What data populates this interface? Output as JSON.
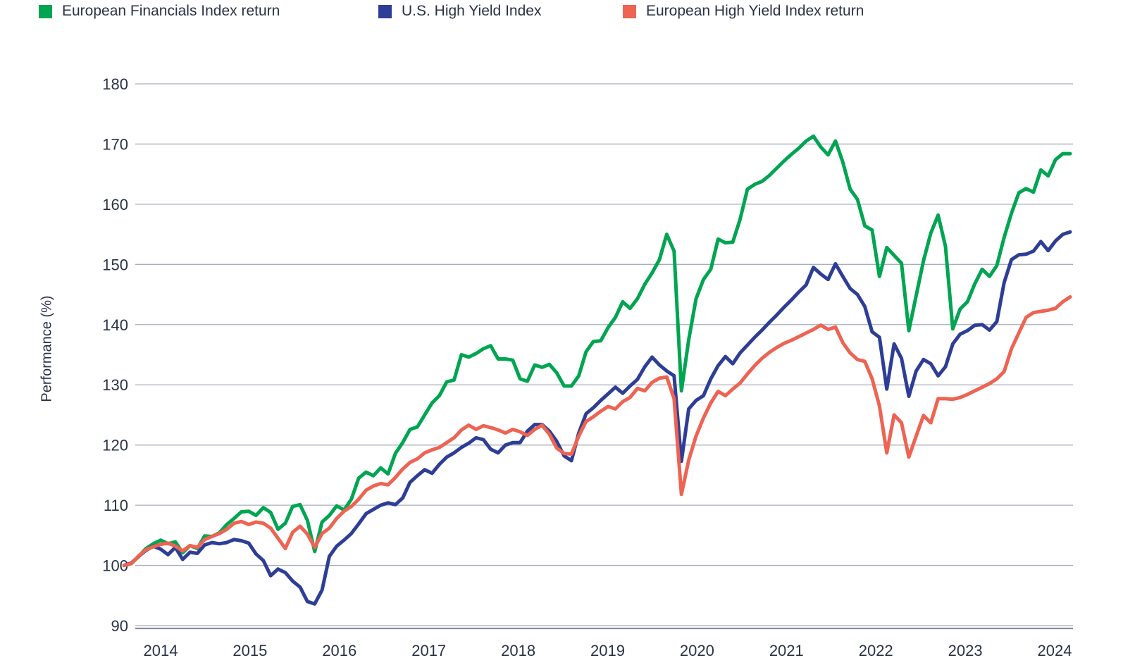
{
  "legend": [
    {
      "label": "European Financials Index return",
      "color": "#00a551"
    },
    {
      "label": "U.S. High Yield Index",
      "color": "#2e3e96"
    },
    {
      "label": "European High Yield Index return",
      "color": "#ee6352"
    }
  ],
  "chart_data": {
    "type": "line",
    "title": "",
    "ylabel": "Performance (%)",
    "xlabel": "",
    "ylim": [
      90,
      180
    ],
    "y_ticks": [
      90,
      100,
      110,
      120,
      130,
      140,
      150,
      160,
      170,
      180
    ],
    "x_tick_labels": [
      "2014",
      "2015",
      "2016",
      "2017",
      "2018",
      "2019",
      "2020",
      "2021",
      "2022",
      "2023",
      "2024"
    ],
    "grid": "horizontal",
    "legend_position": "top-left",
    "x_unit": "monthly points, late 2013 through mid 2024, evenly spaced",
    "colors": {
      "grid": "#a9aebc",
      "axis": "#878e9e",
      "text": "#2a3246"
    },
    "series": [
      {
        "name": "European Financials Index return",
        "color": "#00a551",
        "values": [
          100,
          100.3,
          101.5,
          102.8,
          103.6,
          104.2,
          103.6,
          103.9,
          102.1,
          103.3,
          102.8,
          104.9,
          104.8,
          105.4,
          106.8,
          107.8,
          108.9,
          109.0,
          108.3,
          109.6,
          108.8,
          106.0,
          107.0,
          109.8,
          110.1,
          107.5,
          102.3,
          107.2,
          108.3,
          109.9,
          109.2,
          111.0,
          114.5,
          115.5,
          114.9,
          116.2,
          115.2,
          118.6,
          120.4,
          122.6,
          123.0,
          125.0,
          127.0,
          128.2,
          130.5,
          130.8,
          135.0,
          134.6,
          135.2,
          136.0,
          136.5,
          134.3,
          134.3,
          134.1,
          131.0,
          130.6,
          133.3,
          132.9,
          133.4,
          132.0,
          129.8,
          129.8,
          131.5,
          135.5,
          137.2,
          137.3,
          139.5,
          141.2,
          143.8,
          142.7,
          144.3,
          146.7,
          148.6,
          150.8,
          155.0,
          152.2,
          129.0,
          137.5,
          144.3,
          147.5,
          149.2,
          154.2,
          153.6,
          153.7,
          157.5,
          162.5,
          163.3,
          163.8,
          164.8,
          166.0,
          167.2,
          168.3,
          169.3,
          170.5,
          171.3,
          169.5,
          168.2,
          170.5,
          167.0,
          162.5,
          160.8,
          156.4,
          155.7,
          148.0,
          152.8,
          151.5,
          150.2,
          139.0,
          144.8,
          150.6,
          155.2,
          158.2,
          153.0,
          139.3,
          142.6,
          143.8,
          146.8,
          149.2,
          148.0,
          149.8,
          154.5,
          158.5,
          161.9,
          162.6,
          162.0,
          165.7,
          164.7,
          167.4,
          168.4,
          168.4
        ]
      },
      {
        "name": "U.S. High Yield Index",
        "color": "#2e3e96",
        "values": [
          100,
          100.4,
          101.5,
          102.5,
          103.2,
          102.7,
          101.8,
          103.0,
          101.0,
          102.2,
          102.0,
          103.4,
          103.8,
          103.6,
          103.8,
          104.3,
          104.1,
          103.7,
          101.9,
          100.8,
          98.3,
          99.4,
          98.8,
          97.4,
          96.4,
          94.0,
          93.6,
          95.9,
          101.5,
          103.2,
          104.2,
          105.3,
          106.9,
          108.6,
          109.3,
          110.0,
          110.4,
          110.1,
          111.2,
          113.8,
          114.9,
          115.9,
          115.3,
          116.8,
          118.0,
          118.7,
          119.6,
          120.3,
          121.2,
          120.9,
          119.3,
          118.7,
          120.0,
          120.4,
          120.4,
          122.3,
          123.4,
          123.4,
          122.3,
          120.6,
          118.2,
          117.4,
          122.0,
          125.2,
          126.2,
          127.4,
          128.5,
          129.6,
          128.6,
          129.8,
          130.9,
          133.0,
          134.6,
          133.3,
          132.3,
          131.5,
          117.3,
          126.0,
          127.4,
          128.2,
          131.0,
          133.2,
          134.7,
          133.5,
          135.3,
          136.6,
          137.9,
          139.1,
          140.4,
          141.6,
          142.9,
          144.1,
          145.4,
          146.6,
          149.5,
          148.4,
          147.5,
          150.1,
          148.0,
          146.0,
          145.0,
          143.0,
          138.8,
          137.9,
          129.3,
          136.8,
          134.4,
          128.1,
          132.3,
          134.2,
          133.5,
          131.5,
          133.0,
          136.8,
          138.4,
          139.0,
          139.9,
          140.0,
          139.1,
          140.5,
          147.0,
          150.8,
          151.6,
          151.7,
          152.2,
          153.8,
          152.3,
          153.9,
          155.0,
          155.4
        ]
      },
      {
        "name": "European High Yield Index return",
        "color": "#ee6352",
        "values": [
          100,
          100.3,
          101.6,
          102.6,
          103.1,
          103.5,
          103.7,
          103.2,
          102.4,
          103.3,
          103.0,
          104.3,
          104.8,
          105.3,
          106.0,
          107.0,
          107.3,
          106.8,
          107.2,
          107.0,
          106.2,
          104.5,
          102.8,
          105.5,
          106.5,
          105.2,
          103.0,
          105.3,
          106.2,
          107.8,
          109.0,
          109.8,
          111.0,
          112.5,
          113.2,
          113.6,
          113.4,
          114.6,
          116.0,
          117.1,
          117.7,
          118.7,
          119.2,
          119.6,
          120.4,
          121.2,
          122.5,
          123.3,
          122.6,
          123.2,
          122.9,
          122.5,
          122.0,
          122.6,
          122.2,
          121.6,
          122.6,
          123.3,
          121.8,
          119.5,
          118.6,
          118.5,
          121.5,
          123.9,
          124.7,
          125.6,
          126.4,
          126.0,
          127.2,
          127.9,
          129.4,
          129.0,
          130.4,
          131.1,
          131.3,
          127.7,
          111.8,
          117.5,
          121.5,
          124.5,
          127.0,
          128.9,
          128.2,
          129.3,
          130.3,
          131.8,
          133.2,
          134.4,
          135.4,
          136.2,
          136.9,
          137.4,
          138.0,
          138.6,
          139.2,
          139.9,
          139.2,
          139.6,
          137.0,
          135.3,
          134.2,
          133.9,
          131.0,
          126.5,
          118.7,
          125.0,
          123.7,
          118.0,
          121.5,
          124.9,
          123.7,
          127.7,
          127.7,
          127.6,
          127.9,
          128.4,
          129.0,
          129.6,
          130.2,
          131.0,
          132.2,
          136.0,
          138.6,
          141.2,
          142.0,
          142.2,
          142.4,
          142.7,
          143.8,
          144.6
        ]
      }
    ]
  }
}
